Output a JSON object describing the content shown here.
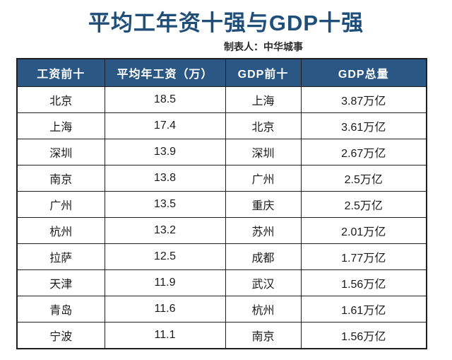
{
  "page": {
    "title": "平均工年资十强与GDP十强",
    "credit": "制表人：中华城事"
  },
  "colors": {
    "title_text": "#1f4e79",
    "header_bg": "#2a5783",
    "header_text": "#ffffff",
    "border": "#1f1f1f",
    "body_text": "#1a1a1a",
    "background": "#ffffff"
  },
  "chart_data": {
    "type": "table",
    "title": "平均工年资十强与GDP十强",
    "subtitle": "制表人：中华城事",
    "columns": [
      "工资前十",
      "平均年工资（万）",
      "GDP前十",
      "GDP总量"
    ],
    "rows": [
      [
        "北京",
        "18.5",
        "上海",
        "3.87万亿"
      ],
      [
        "上海",
        "17.4",
        "北京",
        "3.61万亿"
      ],
      [
        "深圳",
        "13.9",
        "深圳",
        "2.67万亿"
      ],
      [
        "南京",
        "13.8",
        "广州",
        "2.5万亿"
      ],
      [
        "广州",
        "13.5",
        "重庆",
        "2.5万亿"
      ],
      [
        "杭州",
        "13.2",
        "苏州",
        "2.01万亿"
      ],
      [
        "拉萨",
        "12.5",
        "成都",
        "1.77万亿"
      ],
      [
        "天津",
        "11.9",
        "武汉",
        "1.56万亿"
      ],
      [
        "青岛",
        "11.6",
        "杭州",
        "1.61万亿"
      ],
      [
        "宁波",
        "11.1",
        "南京",
        "1.56万亿"
      ]
    ],
    "salary_series": {
      "name": "平均年工资（万）",
      "categories": [
        "北京",
        "上海",
        "深圳",
        "南京",
        "广州",
        "杭州",
        "拉萨",
        "天津",
        "青岛",
        "宁波"
      ],
      "values": [
        18.5,
        17.4,
        13.9,
        13.8,
        13.5,
        13.2,
        12.5,
        11.9,
        11.6,
        11.1
      ]
    },
    "gdp_series": {
      "name": "GDP总量（万亿）",
      "categories": [
        "上海",
        "北京",
        "深圳",
        "广州",
        "重庆",
        "苏州",
        "成都",
        "武汉",
        "杭州",
        "南京"
      ],
      "values": [
        3.87,
        3.61,
        2.67,
        2.5,
        2.5,
        2.01,
        1.77,
        1.56,
        1.61,
        1.56
      ]
    }
  }
}
